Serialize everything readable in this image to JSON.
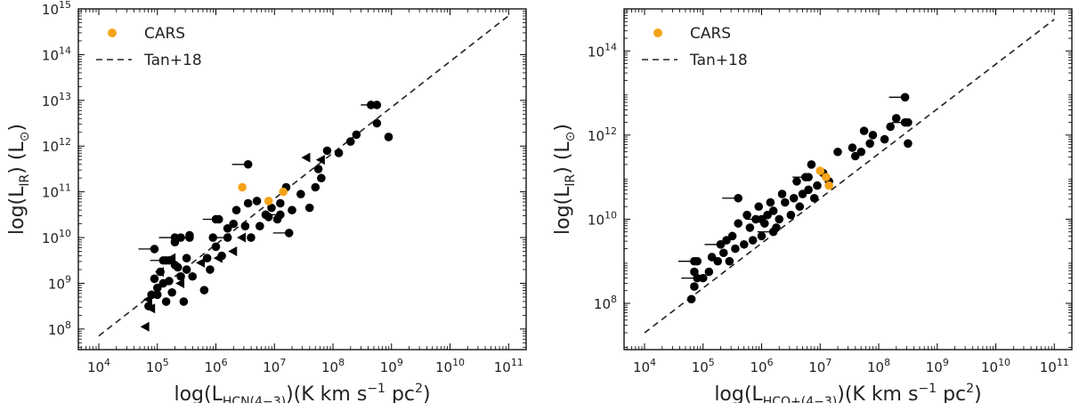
{
  "chart_data": [
    {
      "type": "scatter",
      "xscale": "log",
      "yscale": "log",
      "xlim_exp": [
        3.65,
        11.3
      ],
      "ylim_exp": [
        7.55,
        15.0
      ],
      "x_ticks_exp": [
        4,
        5,
        6,
        7,
        8,
        9,
        10,
        11
      ],
      "y_ticks_exp": [
        8,
        9,
        10,
        11,
        12,
        13,
        14,
        15
      ],
      "xlabel": {
        "main": "log(L",
        "sub": "HCN(4−3)",
        "tail": ")(K km s",
        "sup": "−1",
        "end": " pc",
        "sup2": "2",
        "close": ")"
      },
      "ylabel": {
        "main": "log(L",
        "sub": "IR",
        "tail": ") (L",
        "sub2": "⊙",
        "close": ")"
      },
      "legend": {
        "position": "top-left",
        "cars_label": "CARS",
        "fit_label": "Tan+18"
      },
      "fit_line": {
        "x": [
          4.0,
          11.0
        ],
        "y": [
          7.85,
          14.85
        ]
      },
      "series": [
        {
          "name": "CARS",
          "color": "#f5a31a",
          "x": [
            6.45,
            6.9,
            7.15
          ],
          "y": [
            11.1,
            10.8,
            11.0
          ]
        },
        {
          "name": "",
          "color": "#000000",
          "points_x": [
            4.85,
            4.9,
            4.95,
            5.0,
            5.0,
            5.05,
            5.1,
            5.1,
            5.15,
            5.2,
            5.2,
            5.25,
            5.3,
            5.3,
            5.35,
            5.4,
            5.4,
            5.45,
            5.5,
            5.5,
            5.55,
            5.6,
            5.8,
            5.85,
            5.9,
            5.95,
            6.0,
            6.0,
            6.1,
            6.2,
            6.3,
            6.35,
            6.5,
            6.55,
            6.6,
            6.7,
            6.75,
            6.85,
            6.9,
            6.95,
            7.05,
            7.1,
            7.2,
            7.3,
            7.45,
            7.6,
            7.7,
            7.75,
            7.8,
            7.9,
            8.1,
            8.3,
            8.4,
            8.65,
            8.75,
            8.95
          ],
          "points_y": [
            8.5,
            8.75,
            9.1,
            8.9,
            8.75,
            9.25,
            9.0,
            9.5,
            8.6,
            9.05,
            9.5,
            8.8,
            9.9,
            9.4,
            9.35,
            9.15,
            10.0,
            8.6,
            9.55,
            9.3,
            10.05,
            9.15,
            8.85,
            9.55,
            9.3,
            10.0,
            10.4,
            9.8,
            9.6,
            10.2,
            10.3,
            10.6,
            10.25,
            10.75,
            10.0,
            10.8,
            10.25,
            10.5,
            10.45,
            10.65,
            10.4,
            10.75,
            11.1,
            10.6,
            10.95,
            10.65,
            11.1,
            11.5,
            11.3,
            11.9,
            11.85,
            12.1,
            12.25,
            12.9,
            12.5,
            12.2
          ],
          "xerr_points_x": [
            4.95,
            5.15,
            5.3,
            5.55,
            6.05,
            6.2,
            6.55,
            7.1,
            7.25,
            8.75
          ],
          "xerr_points_y": [
            9.75,
            9.5,
            10.0,
            10.0,
            10.4,
            10.0,
            11.6,
            10.5,
            10.1,
            12.9
          ],
          "upper_limits_x": [
            4.8,
            4.85,
            4.9,
            5.05,
            5.25,
            5.4,
            5.75,
            6.05,
            6.3,
            6.45,
            7.55,
            7.8
          ],
          "upper_limits_y": [
            8.05,
            8.65,
            8.45,
            9.25,
            9.55,
            9.0,
            9.45,
            9.55,
            9.7,
            10.0,
            11.75,
            11.7
          ]
        }
      ]
    },
    {
      "type": "scatter",
      "xscale": "log",
      "yscale": "log",
      "xlim_exp": [
        3.65,
        11.3
      ],
      "ylim_exp": [
        6.9,
        15.0
      ],
      "x_ticks_exp": [
        4,
        5,
        6,
        7,
        8,
        9,
        10,
        11
      ],
      "y_ticks_exp": [
        8,
        10,
        12,
        14
      ],
      "xlabel": {
        "main": "log(L",
        "sub": "HCO+(4−3)",
        "tail": ")(K km s",
        "sup": "−1",
        "end": " pc",
        "sup2": "2",
        "close": ")"
      },
      "ylabel": {
        "main": "log(L",
        "sub": "IR",
        "tail": ") (L",
        "sub2": "⊙",
        "close": ")"
      },
      "legend": {
        "position": "top-left",
        "cars_label": "CARS",
        "fit_label": "Tan+18"
      },
      "fit_line": {
        "x": [
          4.0,
          11.0
        ],
        "y": [
          7.3,
          14.75
        ]
      },
      "series": [
        {
          "name": "CARS",
          "color": "#f5a31a",
          "x": [
            7.0,
            7.1,
            7.15
          ],
          "y": [
            11.15,
            11.0,
            10.8
          ]
        },
        {
          "name": "",
          "color": "#000000",
          "points_x": [
            4.8,
            4.85,
            4.85,
            4.9,
            5.0,
            5.1,
            5.15,
            5.25,
            5.3,
            5.35,
            5.4,
            5.45,
            5.5,
            5.55,
            5.6,
            5.7,
            5.75,
            5.8,
            5.85,
            5.9,
            5.95,
            6.0,
            6.05,
            6.1,
            6.15,
            6.2,
            6.25,
            6.3,
            6.35,
            6.4,
            6.5,
            6.55,
            6.6,
            6.65,
            6.7,
            6.75,
            6.8,
            6.85,
            6.9,
            6.95,
            7.05,
            7.15,
            7.3,
            7.55,
            7.6,
            7.7,
            7.75,
            7.85,
            7.9,
            8.1,
            8.2,
            8.3,
            8.45,
            8.5
          ],
          "points_y": [
            8.1,
            8.4,
            8.75,
            9.0,
            8.6,
            8.75,
            9.1,
            9.0,
            9.4,
            9.2,
            9.5,
            9.0,
            9.6,
            9.3,
            9.9,
            9.4,
            10.1,
            9.8,
            9.5,
            10.0,
            10.3,
            9.6,
            9.9,
            10.1,
            10.4,
            10.2,
            9.8,
            10.0,
            10.6,
            10.4,
            10.1,
            10.5,
            10.9,
            10.3,
            10.6,
            11.0,
            10.7,
            11.3,
            10.5,
            10.8,
            11.1,
            10.9,
            11.6,
            11.7,
            11.5,
            11.6,
            12.1,
            11.8,
            12.0,
            11.9,
            12.2,
            12.4,
            12.3,
            11.8
          ],
          "xerr_points_x": [
            4.85,
            4.9,
            5.3,
            5.6,
            6.0,
            6.2,
            6.8,
            8.45,
            8.5
          ],
          "xerr_points_y": [
            9.0,
            8.6,
            9.4,
            10.5,
            10.0,
            9.7,
            11.0,
            12.9,
            12.3
          ],
          "upper_limits_x": [],
          "upper_limits_y": []
        }
      ]
    }
  ]
}
